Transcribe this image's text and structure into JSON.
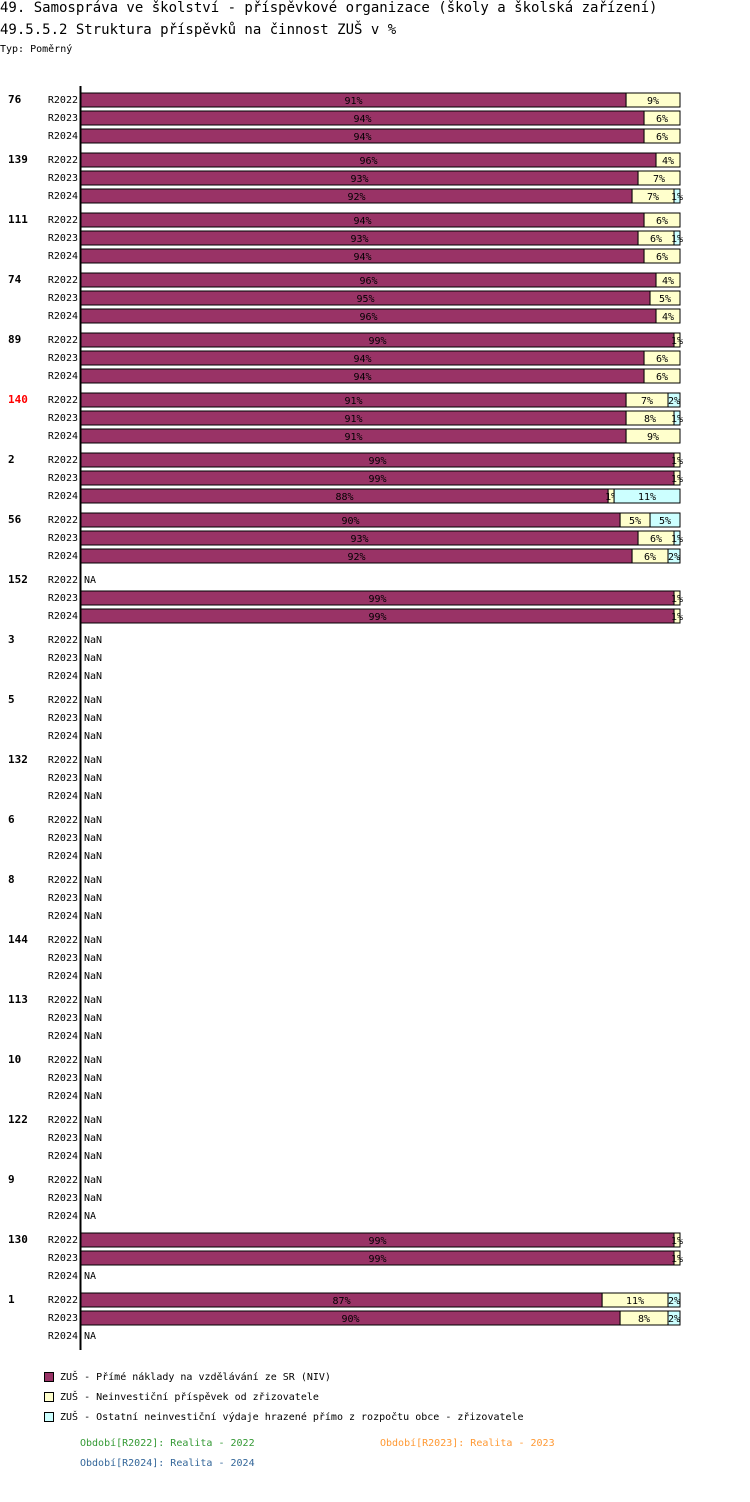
{
  "chart_data": {
    "type": "bar",
    "orientation": "horizontal",
    "stacked": true,
    "title": "49. Samospráva ve školství - příspěvkové organizace (školy a školská zařízení)",
    "subtitle": "49.5.5.2 Struktura příspěvků na činnost ZUŠ v %",
    "type_label": "Typ: Poměrný",
    "xlim": [
      0,
      100
    ],
    "series": [
      {
        "name": "ZUŠ - Přímé náklady na vzdělávání ze SR (NIV)",
        "color": "#993366"
      },
      {
        "name": "ZUŠ - Neinvestiční příspěvek od zřizovatele",
        "color": "#ffffcc"
      },
      {
        "name": "ZUŠ - Ostatní neinvestiční výdaje hrazené přímo z rozpočtu obce - zřizovatele",
        "color": "#ccffff"
      }
    ],
    "groups": [
      {
        "label": "76",
        "highlight": false,
        "rows": [
          {
            "period": "R2022",
            "values": [
              91,
              9,
              0
            ],
            "labels": [
              "91%",
              "9%",
              ""
            ]
          },
          {
            "period": "R2023",
            "values": [
              94,
              6,
              0
            ],
            "labels": [
              "94%",
              "6%",
              ""
            ]
          },
          {
            "period": "R2024",
            "values": [
              94,
              6,
              0
            ],
            "labels": [
              "94%",
              "6%",
              ""
            ]
          }
        ]
      },
      {
        "label": "139",
        "highlight": false,
        "rows": [
          {
            "period": "R2022",
            "values": [
              96,
              4,
              0
            ],
            "labels": [
              "96%",
              "4%",
              ""
            ]
          },
          {
            "period": "R2023",
            "values": [
              93,
              7,
              0
            ],
            "labels": [
              "93%",
              "7%",
              ""
            ]
          },
          {
            "period": "R2024",
            "values": [
              92,
              7,
              1
            ],
            "labels": [
              "92%",
              "7%",
              "1%"
            ]
          }
        ]
      },
      {
        "label": "111",
        "highlight": false,
        "rows": [
          {
            "period": "R2022",
            "values": [
              94,
              6,
              0
            ],
            "labels": [
              "94%",
              "6%",
              ""
            ]
          },
          {
            "period": "R2023",
            "values": [
              93,
              6,
              1
            ],
            "labels": [
              "93%",
              "6%",
              "1%"
            ]
          },
          {
            "period": "R2024",
            "values": [
              94,
              6,
              0
            ],
            "labels": [
              "94%",
              "6%",
              ""
            ]
          }
        ]
      },
      {
        "label": "74",
        "highlight": false,
        "rows": [
          {
            "period": "R2022",
            "values": [
              96,
              4,
              0
            ],
            "labels": [
              "96%",
              "4%",
              ""
            ]
          },
          {
            "period": "R2023",
            "values": [
              95,
              5,
              0
            ],
            "labels": [
              "95%",
              "5%",
              ""
            ]
          },
          {
            "period": "R2024",
            "values": [
              96,
              4,
              0
            ],
            "labels": [
              "96%",
              "4%",
              ""
            ]
          }
        ]
      },
      {
        "label": "89",
        "highlight": false,
        "rows": [
          {
            "period": "R2022",
            "values": [
              99,
              1,
              0
            ],
            "labels": [
              "99%",
              "1%",
              ""
            ]
          },
          {
            "period": "R2023",
            "values": [
              94,
              6,
              0
            ],
            "labels": [
              "94%",
              "6%",
              ""
            ]
          },
          {
            "period": "R2024",
            "values": [
              94,
              6,
              0
            ],
            "labels": [
              "94%",
              "6%",
              ""
            ]
          }
        ]
      },
      {
        "label": "140",
        "highlight": true,
        "rows": [
          {
            "period": "R2022",
            "values": [
              91,
              7,
              2
            ],
            "labels": [
              "91%",
              "7%",
              "2%"
            ]
          },
          {
            "period": "R2023",
            "values": [
              91,
              8,
              1
            ],
            "labels": [
              "91%",
              "8%",
              "1%"
            ]
          },
          {
            "period": "R2024",
            "values": [
              91,
              9,
              0
            ],
            "labels": [
              "91%",
              "9%",
              ""
            ]
          }
        ]
      },
      {
        "label": "2",
        "highlight": false,
        "rows": [
          {
            "period": "R2022",
            "values": [
              99,
              1,
              0
            ],
            "labels": [
              "99%",
              "1%",
              ""
            ]
          },
          {
            "period": "R2023",
            "values": [
              99,
              1,
              0
            ],
            "labels": [
              "99%",
              "1%",
              ""
            ]
          },
          {
            "period": "R2024",
            "values": [
              88,
              1,
              11
            ],
            "labels": [
              "88%",
              "1%",
              "11%"
            ]
          }
        ]
      },
      {
        "label": "56",
        "highlight": false,
        "rows": [
          {
            "period": "R2022",
            "values": [
              90,
              5,
              5
            ],
            "labels": [
              "90%",
              "5%",
              "5%"
            ]
          },
          {
            "period": "R2023",
            "values": [
              93,
              6,
              1
            ],
            "labels": [
              "93%",
              "6%",
              "1%"
            ]
          },
          {
            "period": "R2024",
            "values": [
              92,
              6,
              2
            ],
            "labels": [
              "92%",
              "6%",
              "2%"
            ]
          }
        ]
      },
      {
        "label": "152",
        "highlight": false,
        "rows": [
          {
            "period": "R2022",
            "na": "NA"
          },
          {
            "period": "R2023",
            "values": [
              99,
              1,
              0
            ],
            "labels": [
              "99%",
              "1%",
              ""
            ]
          },
          {
            "period": "R2024",
            "values": [
              99,
              1,
              0
            ],
            "labels": [
              "99%",
              "1%",
              ""
            ]
          }
        ]
      },
      {
        "label": "3",
        "highlight": false,
        "rows": [
          {
            "period": "R2022",
            "na": "NaN"
          },
          {
            "period": "R2023",
            "na": "NaN"
          },
          {
            "period": "R2024",
            "na": "NaN"
          }
        ]
      },
      {
        "label": "5",
        "highlight": false,
        "rows": [
          {
            "period": "R2022",
            "na": "NaN"
          },
          {
            "period": "R2023",
            "na": "NaN"
          },
          {
            "period": "R2024",
            "na": "NaN"
          }
        ]
      },
      {
        "label": "132",
        "highlight": false,
        "rows": [
          {
            "period": "R2022",
            "na": "NaN"
          },
          {
            "period": "R2023",
            "na": "NaN"
          },
          {
            "period": "R2024",
            "na": "NaN"
          }
        ]
      },
      {
        "label": "6",
        "highlight": false,
        "rows": [
          {
            "period": "R2022",
            "na": "NaN"
          },
          {
            "period": "R2023",
            "na": "NaN"
          },
          {
            "period": "R2024",
            "na": "NaN"
          }
        ]
      },
      {
        "label": "8",
        "highlight": false,
        "rows": [
          {
            "period": "R2022",
            "na": "NaN"
          },
          {
            "period": "R2023",
            "na": "NaN"
          },
          {
            "period": "R2024",
            "na": "NaN"
          }
        ]
      },
      {
        "label": "144",
        "highlight": false,
        "rows": [
          {
            "period": "R2022",
            "na": "NaN"
          },
          {
            "period": "R2023",
            "na": "NaN"
          },
          {
            "period": "R2024",
            "na": "NaN"
          }
        ]
      },
      {
        "label": "113",
        "highlight": false,
        "rows": [
          {
            "period": "R2022",
            "na": "NaN"
          },
          {
            "period": "R2023",
            "na": "NaN"
          },
          {
            "period": "R2024",
            "na": "NaN"
          }
        ]
      },
      {
        "label": "10",
        "highlight": false,
        "rows": [
          {
            "period": "R2022",
            "na": "NaN"
          },
          {
            "period": "R2023",
            "na": "NaN"
          },
          {
            "period": "R2024",
            "na": "NaN"
          }
        ]
      },
      {
        "label": "122",
        "highlight": false,
        "rows": [
          {
            "period": "R2022",
            "na": "NaN"
          },
          {
            "period": "R2023",
            "na": "NaN"
          },
          {
            "period": "R2024",
            "na": "NaN"
          }
        ]
      },
      {
        "label": "9",
        "highlight": false,
        "rows": [
          {
            "period": "R2022",
            "na": "NaN"
          },
          {
            "period": "R2023",
            "na": "NaN"
          },
          {
            "period": "R2024",
            "na": "NA"
          }
        ]
      },
      {
        "label": "130",
        "highlight": false,
        "rows": [
          {
            "period": "R2022",
            "values": [
              99,
              1,
              0
            ],
            "labels": [
              "99%",
              "1%",
              ""
            ]
          },
          {
            "period": "R2023",
            "values": [
              99,
              1,
              0
            ],
            "labels": [
              "99%",
              "1%",
              ""
            ]
          },
          {
            "period": "R2024",
            "na": "NA"
          }
        ]
      },
      {
        "label": "1",
        "highlight": false,
        "rows": [
          {
            "period": "R2022",
            "values": [
              87,
              11,
              2
            ],
            "labels": [
              "87%",
              "11%",
              "2%"
            ]
          },
          {
            "period": "R2023",
            "values": [
              90,
              8,
              2
            ],
            "labels": [
              "90%",
              "8%",
              "2%"
            ]
          },
          {
            "period": "R2024",
            "na": "NA"
          }
        ]
      }
    ]
  },
  "periods": [
    {
      "text": "Období[R2022]: Realita - 2022",
      "color": "#339933"
    },
    {
      "text": "Období[R2023]: Realita - 2023",
      "color": "#ff9933"
    },
    {
      "text": "Období[R2024]: Realita - 2024",
      "color": "#336699"
    }
  ],
  "colors": {
    "highlight": "#ff0000",
    "text": "#000000"
  }
}
